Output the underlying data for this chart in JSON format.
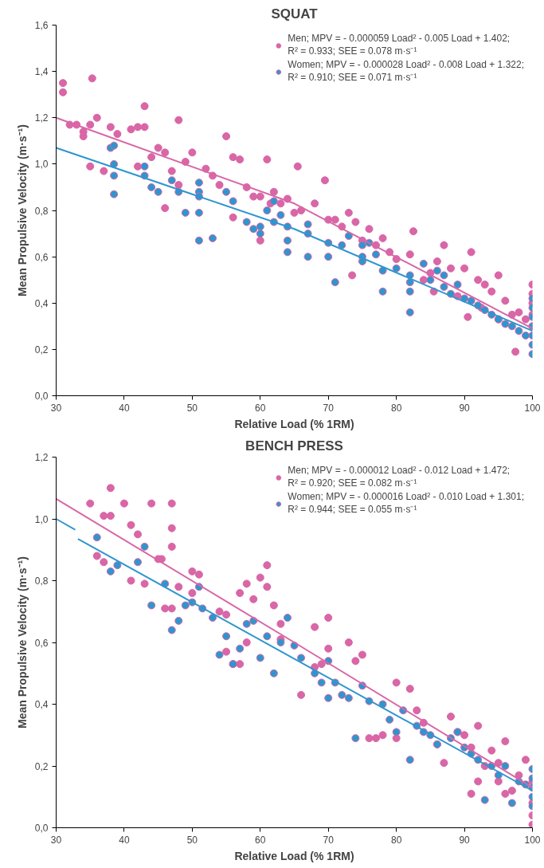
{
  "chart_data": [
    {
      "type": "scatter",
      "title": "SQUAT",
      "xlabel": "Relative Load (% 1RM)",
      "ylabel": "Mean Propulsive Velocity (m·s⁻¹)",
      "xlim": [
        30,
        100
      ],
      "xticks": [
        30,
        40,
        50,
        60,
        70,
        80,
        90,
        100
      ],
      "ylim": [
        0,
        1.6
      ],
      "yticks": [
        {
          "value": 0,
          "label": "0,0"
        },
        {
          "value": 0.2,
          "label": "0,2"
        },
        {
          "value": 0.4,
          "label": "0,4"
        },
        {
          "value": 0.6,
          "label": "0,6"
        },
        {
          "value": 0.8,
          "label": "0,8"
        },
        {
          "value": 1.0,
          "label": "1,0"
        },
        {
          "value": 1.2,
          "label": "1,2"
        },
        {
          "value": 1.4,
          "label": "1,4"
        },
        {
          "value": 1.6,
          "label": "1,6"
        }
      ],
      "grid": false,
      "legend": "top right",
      "marker": "circle",
      "series": [
        {
          "name": "Men; MPV = - 0.000059 Load² - 0.005 Load + 1.402;\nR² = 0.933; SEE = 0.078 m·s⁻¹",
          "color": "#d966a6",
          "x": [
            31,
            31,
            35.3,
            32,
            33,
            34,
            34,
            35,
            36,
            35,
            38,
            39,
            37,
            41,
            42,
            43,
            43,
            44,
            42,
            46,
            47,
            48,
            49,
            50,
            45,
            46,
            48,
            52,
            53,
            54,
            55,
            56,
            57,
            56,
            58,
            60,
            61,
            62,
            63,
            64,
            65,
            65.5,
            68,
            69.5,
            70,
            71,
            72,
            73,
            74,
            75,
            76,
            77,
            78,
            79,
            80,
            82,
            82.5,
            84,
            85,
            86,
            87,
            88,
            89,
            90,
            91,
            92,
            93,
            94,
            95,
            96,
            97,
            98,
            99,
            97.5,
            100,
            100,
            100,
            100,
            100,
            73.5,
            60,
            61.5,
            59,
            66,
            85.5,
            92.5,
            90.5,
            95
          ],
          "values": [
            1.35,
            1.31,
            1.37,
            1.17,
            1.17,
            1.12,
            1.14,
            1.17,
            1.2,
            0.99,
            1.16,
            1.13,
            0.97,
            1.15,
            1.16,
            1.25,
            1.16,
            1.03,
            0.99,
            1.05,
            0.97,
            1.19,
            1.01,
            1.05,
            1.07,
            0.81,
            0.91,
            0.98,
            0.95,
            0.91,
            1.12,
            1.03,
            1.02,
            0.77,
            0.9,
            0.86,
            1.02,
            0.88,
            0.83,
            0.85,
            0.79,
            0.99,
            0.83,
            0.93,
            0.76,
            0.76,
            0.73,
            0.79,
            0.75,
            0.67,
            0.72,
            0.65,
            0.68,
            0.62,
            0.59,
            0.61,
            0.71,
            0.5,
            0.53,
            0.58,
            0.65,
            0.55,
            0.43,
            0.55,
            0.62,
            0.5,
            0.48,
            0.45,
            0.52,
            0.41,
            0.35,
            0.36,
            0.33,
            0.19,
            0.48,
            0.44,
            0.4,
            0.35,
            0.3,
            0.52,
            0.67,
            0.83,
            0.86,
            0.8,
            0.45,
            0.38,
            0.34,
            0.33
          ]
        },
        {
          "name": "Women; MPV = - 0.000028 Load² - 0.008 Load + 1.322;\nR² = 0.910; SEE = 0.071 m·s⁻¹",
          "color": "#2e96cf",
          "x": [
            38,
            38.5,
            38.5,
            38.5,
            38.5,
            43,
            43,
            44,
            45,
            47,
            48,
            49,
            51,
            51,
            51,
            51,
            51,
            53,
            55,
            56,
            58,
            59,
            60,
            60,
            61,
            62,
            62,
            63,
            64,
            64,
            64,
            67,
            67,
            67,
            70,
            70,
            71,
            72,
            73,
            75,
            75,
            75,
            76,
            77,
            78,
            78,
            80,
            82,
            82,
            82,
            82,
            84,
            85,
            86,
            87,
            87,
            88,
            89,
            90,
            91,
            92,
            93,
            94,
            95,
            96,
            97,
            98,
            99,
            100,
            100,
            100,
            100,
            100,
            100,
            100
          ],
          "values": [
            1.07,
            1.08,
            1.0,
            0.95,
            0.87,
            0.99,
            0.95,
            0.9,
            0.88,
            0.93,
            0.88,
            0.79,
            0.92,
            0.88,
            0.86,
            0.79,
            0.67,
            0.68,
            0.88,
            0.84,
            0.75,
            0.72,
            0.73,
            0.7,
            0.8,
            0.84,
            0.75,
            0.78,
            0.73,
            0.67,
            0.62,
            0.74,
            0.7,
            0.6,
            0.66,
            0.6,
            0.49,
            0.65,
            0.69,
            0.65,
            0.6,
            0.58,
            0.66,
            0.61,
            0.54,
            0.45,
            0.55,
            0.52,
            0.49,
            0.45,
            0.36,
            0.57,
            0.5,
            0.54,
            0.52,
            0.47,
            0.44,
            0.48,
            0.42,
            0.41,
            0.39,
            0.37,
            0.35,
            0.33,
            0.31,
            0.3,
            0.28,
            0.26,
            0.42,
            0.38,
            0.34,
            0.3,
            0.26,
            0.22,
            0.18
          ]
        },
        {
          "type": "line",
          "marker": "none",
          "color": "#d966a6",
          "x": [
            30,
            65,
            100
          ],
          "values": [
            1.2,
            0.83,
            0.29
          ]
        },
        {
          "type": "line",
          "marker": "none",
          "color": "#2e96cf",
          "x": [
            30,
            65,
            100
          ],
          "values": [
            1.07,
            0.72,
            0.28
          ]
        }
      ]
    },
    {
      "type": "scatter",
      "title": "BENCH PRESS",
      "xlabel": "Relative Load (% 1RM)",
      "ylabel": "Mean Propulsive Velocity (m·s⁻¹)",
      "xlim": [
        30,
        100
      ],
      "xticks": [
        30,
        40,
        50,
        60,
        70,
        80,
        90,
        100
      ],
      "ylim": [
        0,
        1.2
      ],
      "yticks": [
        {
          "value": 0,
          "label": "0,0"
        },
        {
          "value": 0.2,
          "label": "0,2"
        },
        {
          "value": 0.4,
          "label": "0,4"
        },
        {
          "value": 0.6,
          "label": "0,6"
        },
        {
          "value": 0.8,
          "label": "0,8"
        },
        {
          "value": 1.0,
          "label": "1,0"
        },
        {
          "value": 1.2,
          "label": "1,2"
        }
      ],
      "grid": false,
      "legend": "top right",
      "marker": "circle",
      "series": [
        {
          "name": "Men; MPV = - 0.000012 Load² - 0.012 Load + 1.472;\nR² = 0.920; SEE = 0.082 m·s⁻¹",
          "color": "#d966a6",
          "x": [
            35,
            37,
            38,
            38,
            40,
            44,
            47,
            47,
            41,
            42,
            45,
            45.5,
            47,
            36,
            37,
            41,
            43,
            46,
            47,
            48,
            50,
            51,
            50,
            54,
            55,
            57,
            58,
            59,
            60,
            61,
            61,
            62,
            63,
            55,
            56,
            57,
            58,
            63,
            66,
            68,
            69,
            70,
            70,
            68,
            73,
            74,
            75,
            76,
            77,
            78,
            80,
            80,
            82,
            83,
            84,
            86,
            87,
            88,
            89,
            90,
            91,
            92,
            93,
            94,
            95,
            96,
            97,
            98,
            99,
            100,
            100,
            100,
            100,
            91,
            92,
            95,
            96
          ],
          "values": [
            1.05,
            1.01,
            1.01,
            1.1,
            1.05,
            1.05,
            1.05,
            0.97,
            0.98,
            0.95,
            0.87,
            0.87,
            0.91,
            0.88,
            0.86,
            0.8,
            0.79,
            0.71,
            0.71,
            0.78,
            0.83,
            0.82,
            0.76,
            0.7,
            0.69,
            0.76,
            0.79,
            0.74,
            0.81,
            0.85,
            0.78,
            0.72,
            0.66,
            0.57,
            0.53,
            0.53,
            0.6,
            0.61,
            0.43,
            0.52,
            0.53,
            0.58,
            0.68,
            0.65,
            0.6,
            0.54,
            0.56,
            0.29,
            0.29,
            0.3,
            0.29,
            0.47,
            0.45,
            0.38,
            0.34,
            0.27,
            0.21,
            0.36,
            0.31,
            0.3,
            0.26,
            0.33,
            0.2,
            0.25,
            0.21,
            0.28,
            0.12,
            0.17,
            0.22,
            0.15,
            0.08,
            0.04,
            0.01,
            0.11,
            0.15,
            0.15,
            0.11
          ]
        },
        {
          "name": "Women; MPV = - 0.000016 Load² - 0.010 Load + 1.301;\nR² = 0.944; SEE = 0.055 m·s⁻¹",
          "color": "#2e96cf",
          "x": [
            36,
            38,
            39,
            42,
            43,
            44,
            46,
            47,
            48,
            49,
            50,
            51,
            51.5,
            53,
            54,
            55,
            56,
            57,
            58,
            59,
            60,
            61,
            62,
            63,
            64,
            65,
            66,
            68,
            69,
            70,
            70,
            71,
            72,
            73,
            74,
            75,
            76,
            78,
            79,
            80,
            81,
            82,
            83,
            84,
            85,
            86,
            88,
            89,
            90,
            91,
            92,
            93,
            94,
            95,
            96,
            97,
            98,
            99,
            100,
            100,
            100,
            100,
            100
          ],
          "values": [
            0.94,
            0.83,
            0.85,
            0.86,
            0.91,
            0.72,
            0.79,
            0.64,
            0.67,
            0.72,
            0.73,
            0.78,
            0.71,
            0.68,
            0.56,
            0.62,
            0.53,
            0.58,
            0.66,
            0.67,
            0.55,
            0.62,
            0.5,
            0.6,
            0.68,
            0.59,
            0.55,
            0.5,
            0.47,
            0.54,
            0.42,
            0.47,
            0.43,
            0.42,
            0.29,
            0.46,
            0.41,
            0.4,
            0.35,
            0.31,
            0.38,
            0.22,
            0.33,
            0.31,
            0.3,
            0.27,
            0.29,
            0.31,
            0.26,
            0.24,
            0.22,
            0.09,
            0.2,
            0.17,
            0.2,
            0.08,
            0.15,
            0.14,
            0.19,
            0.16,
            0.13,
            0.1,
            0.07
          ]
        },
        {
          "type": "line",
          "marker": "none",
          "color": "#d966a6",
          "x": [
            30,
            65,
            100
          ],
          "values": [
            1.065,
            0.6,
            0.13
          ]
        },
        {
          "type": "line",
          "marker": "none",
          "color": "#2e96cf",
          "x": [
            30,
            32.8,
            33,
            33.2,
            100
          ],
          "values": [
            1.0,
            0.965,
            null,
            0.935,
            0.12
          ]
        }
      ]
    }
  ]
}
